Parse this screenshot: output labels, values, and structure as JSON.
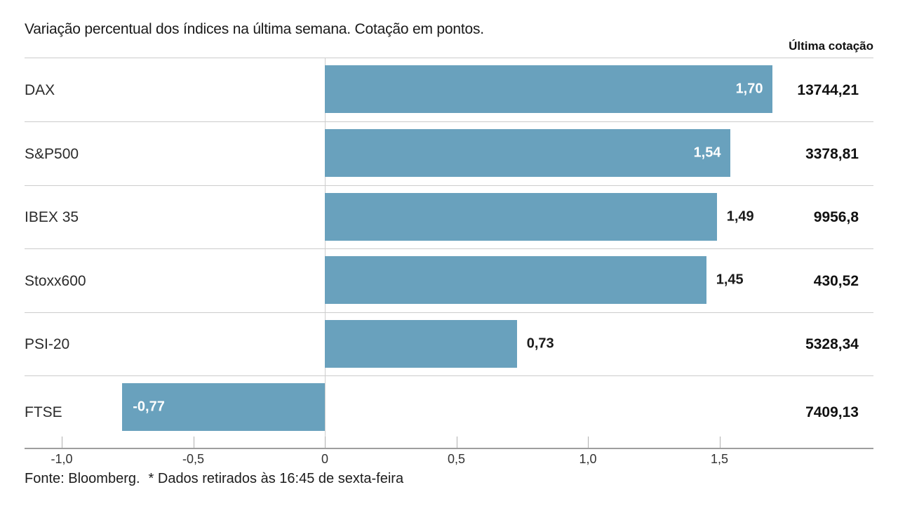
{
  "chart_data": {
    "type": "bar",
    "orientation": "horizontal",
    "title": "Variação percentual dos índices na última semana. Cotação em pontos.",
    "value_column_header": "Última cotação",
    "categories": [
      "DAX",
      "S&P500",
      "IBEX 35",
      "Stoxx600",
      "PSI-20",
      "FTSE"
    ],
    "series": [
      {
        "name": "Variação percentual na última semana (%)",
        "values": [
          1.7,
          1.54,
          1.49,
          1.45,
          0.73,
          -0.77
        ]
      }
    ],
    "value_labels": [
      "1,70",
      "1,54",
      "1,49",
      "1,45",
      "0,73",
      "-0,77"
    ],
    "value_label_inside_bar": [
      true,
      true,
      false,
      false,
      false,
      true
    ],
    "last_quotes": [
      "13744,21",
      "3378,81",
      "9956,8",
      "430,52",
      "5328,34",
      "7409,13"
    ],
    "x_tick_values": [
      -1.0,
      -0.5,
      0,
      0.5,
      1.0,
      1.5
    ],
    "x_tick_labels": [
      "-1,0",
      "-0,5",
      "0",
      "0,5",
      "1,0",
      "1,5"
    ],
    "xlim": [
      -1.14,
      2.09
    ],
    "grid": "zero-line-only",
    "legend": "none",
    "bar_color": "#69A1BD"
  },
  "footer": {
    "source": "Fonte: Bloomberg.",
    "note": "* Dados retirados às 16:45 de sexta-feira"
  },
  "colors": {
    "bar": "#69A1BD",
    "bar_label_inside": "#FFFFFF",
    "bar_label_outside": "#1A1A1A",
    "separator": "#CCCCCC",
    "axis_line": "#9E9E9E",
    "zero_line": "#CFCFCF",
    "text_dark": "#1A1A1A"
  }
}
